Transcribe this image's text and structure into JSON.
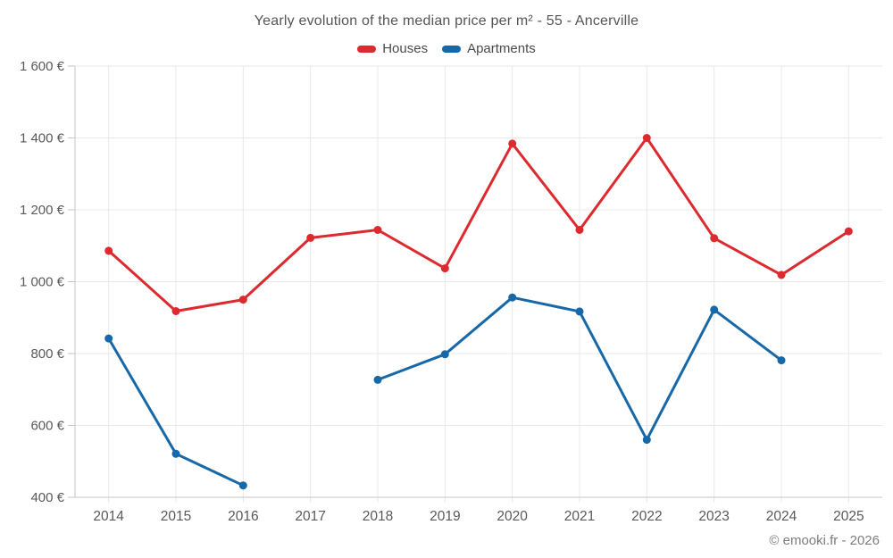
{
  "chart_data": {
    "type": "line",
    "title": "Yearly evolution of the median price per m² - 55 - Ancerville",
    "categories": [
      "2014",
      "2015",
      "2016",
      "2017",
      "2018",
      "2019",
      "2020",
      "2021",
      "2022",
      "2023",
      "2024",
      "2025"
    ],
    "series": [
      {
        "name": "Houses",
        "color": "#dc2a2e",
        "values": [
          1086,
          918,
          950,
          1122,
          1144,
          1037,
          1384,
          1144,
          1400,
          1121,
          1019,
          1140
        ]
      },
      {
        "name": "Apartments",
        "color": "#1668a8",
        "values": [
          842,
          521,
          433,
          null,
          727,
          798,
          956,
          917,
          560,
          922,
          781,
          null
        ]
      }
    ],
    "xlabel": "",
    "ylabel": "",
    "ylim": [
      400,
      1600
    ],
    "y_ticks": [
      400,
      600,
      800,
      1000,
      1200,
      1400,
      1600
    ],
    "y_tick_labels": [
      "400 €",
      "600 €",
      "800 €",
      "1 000 €",
      "1 200 €",
      "1 400 €",
      "1 600 €"
    ],
    "grid": true,
    "legend_position": "top",
    "colors": {
      "gridline": "#e8e8e8",
      "axis_line": "#c6c6c6",
      "tick_text": "#58595b",
      "title_text": "#555557",
      "legend_text": "#4a4a4c",
      "credit_text": "#7d7d7f"
    }
  },
  "footer": {
    "credit": "© emooki.fr - 2026"
  }
}
